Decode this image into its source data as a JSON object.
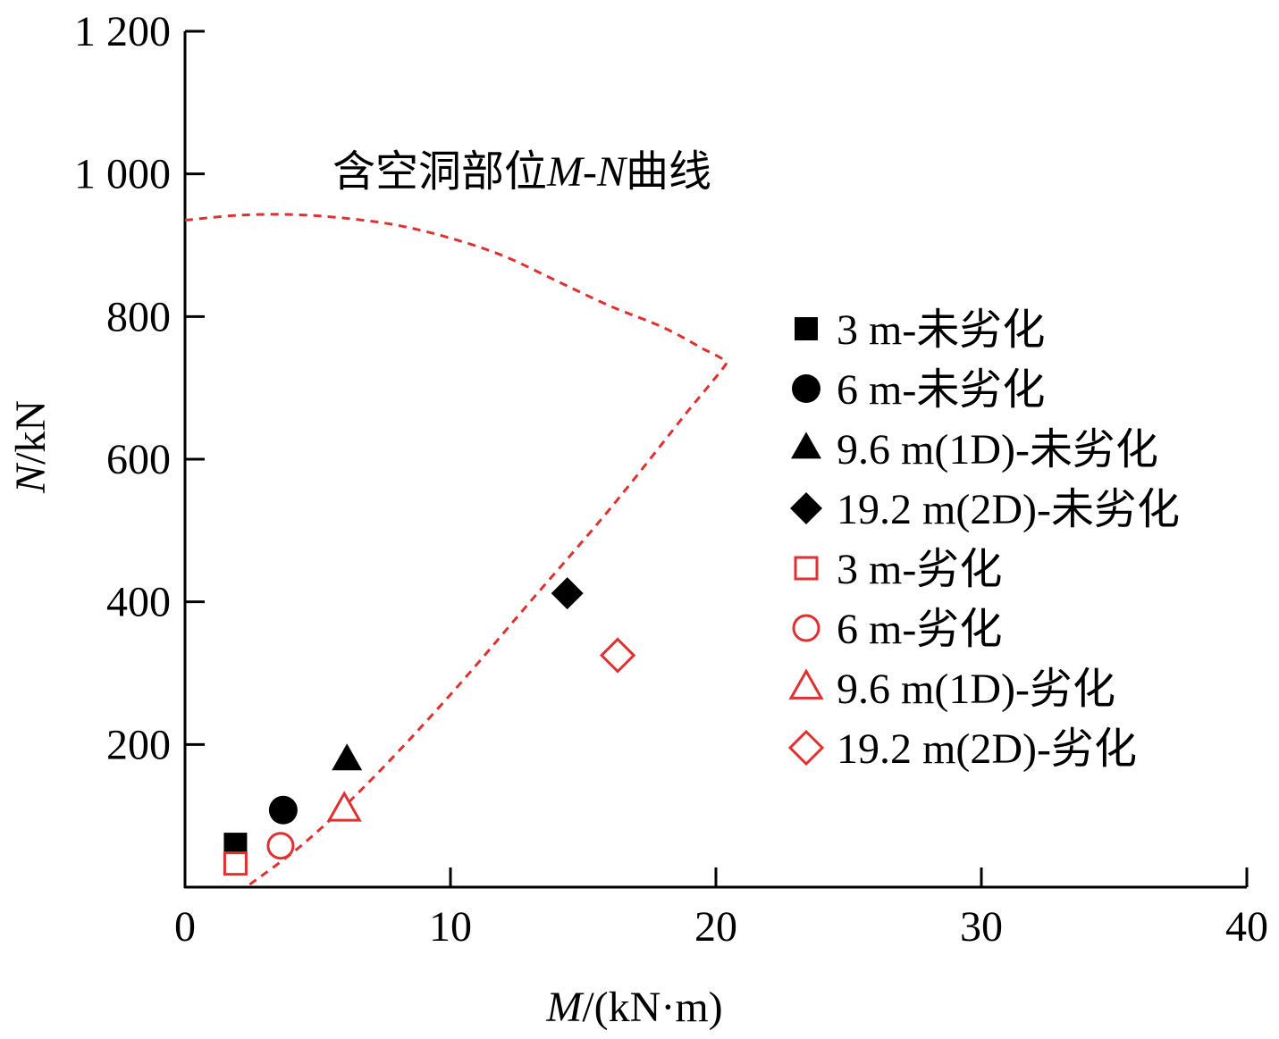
{
  "chart_data": {
    "type": "scatter",
    "title": "",
    "xlabel": "M/(kN·m)",
    "xlabel_italic": "M",
    "xlabel_rest": "/(kN·m)",
    "ylabel": "N/kN",
    "ylabel_italic": "N",
    "ylabel_rest": "/kN",
    "xlim": [
      0,
      40
    ],
    "ylim": [
      0,
      1200
    ],
    "xticks": [
      0,
      10,
      20,
      30,
      40
    ],
    "xtick_labels": [
      "0",
      "10",
      "20",
      "30",
      "40"
    ],
    "yticks": [
      200,
      400,
      600,
      800,
      1000,
      1200
    ],
    "ytick_labels": [
      "200",
      "400",
      "600",
      "800",
      "1 000",
      "1 200"
    ],
    "grid": false,
    "legend_position": "right",
    "annotation": {
      "text": "含空洞部位M-N曲线",
      "prefix": "含空洞部位",
      "italic_m": "M",
      "dash": "-",
      "italic_n": "N",
      "suffix": "曲线"
    },
    "curve": {
      "name": "含空洞部位M-N曲线",
      "color": "#e03030",
      "style": "dashed",
      "points": [
        [
          0,
          935
        ],
        [
          2,
          942
        ],
        [
          4,
          943
        ],
        [
          6,
          938
        ],
        [
          8,
          928
        ],
        [
          10,
          910
        ],
        [
          12,
          885
        ],
        [
          14,
          850
        ],
        [
          16,
          815
        ],
        [
          18,
          785
        ],
        [
          19.5,
          755
        ],
        [
          20.4,
          735
        ],
        [
          19,
          670
        ],
        [
          16,
          530
        ],
        [
          13,
          400
        ],
        [
          10,
          270
        ],
        [
          7,
          150
        ],
        [
          4.5,
          62
        ],
        [
          2.3,
          0
        ]
      ]
    },
    "series": [
      {
        "name": "3 m-未劣化",
        "marker": "square",
        "filled": true,
        "color": "#000000",
        "x": 1.9,
        "y": 60
      },
      {
        "name": "6 m-未劣化",
        "marker": "circle",
        "filled": true,
        "color": "#000000",
        "x": 3.7,
        "y": 108
      },
      {
        "name": "9.6 m(1D)-未劣化",
        "marker": "triangle",
        "filled": true,
        "color": "#000000",
        "x": 6.1,
        "y": 178
      },
      {
        "name": "19.2 m(2D)-未劣化",
        "marker": "diamond",
        "filled": true,
        "color": "#000000",
        "x": 14.4,
        "y": 412
      },
      {
        "name": "3 m-劣化",
        "marker": "square",
        "filled": false,
        "color": "#e03030",
        "x": 1.9,
        "y": 33
      },
      {
        "name": "6 m-劣化",
        "marker": "circle",
        "filled": false,
        "color": "#e03030",
        "x": 3.6,
        "y": 58
      },
      {
        "name": "9.6 m(1D)-劣化",
        "marker": "triangle",
        "filled": false,
        "color": "#e03030",
        "x": 6.0,
        "y": 108
      },
      {
        "name": "19.2 m(2D)-劣化",
        "marker": "diamond",
        "filled": false,
        "color": "#e03030",
        "x": 16.3,
        "y": 325
      }
    ]
  }
}
